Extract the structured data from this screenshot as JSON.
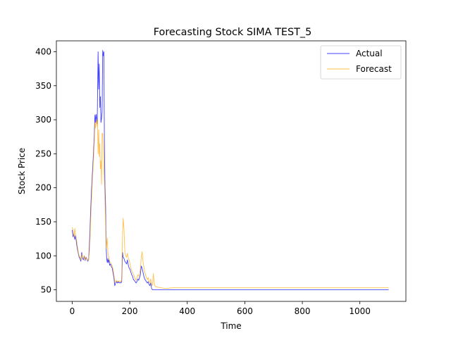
{
  "chart_data": {
    "type": "line",
    "title": "Forecasting Stock SIMA TEST_5",
    "xlabel": "Time",
    "ylabel": "Stock Price",
    "xlim": [
      -55,
      1160
    ],
    "ylim": [
      33,
      416
    ],
    "xticks": [
      0,
      200,
      400,
      600,
      800,
      1000
    ],
    "yticks": [
      50,
      100,
      150,
      200,
      250,
      300,
      350,
      400
    ],
    "grid": false,
    "legend": "top-right",
    "series": [
      {
        "name": "Actual",
        "color": "#0000ff",
        "points": [
          [
            0,
            138
          ],
          [
            3,
            128
          ],
          [
            6,
            132
          ],
          [
            9,
            124
          ],
          [
            12,
            130
          ],
          [
            15,
            118
          ],
          [
            18,
            110
          ],
          [
            21,
            104
          ],
          [
            24,
            98
          ],
          [
            27,
            96
          ],
          [
            30,
            92
          ],
          [
            33,
            105
          ],
          [
            36,
            96
          ],
          [
            39,
            94
          ],
          [
            42,
            100
          ],
          [
            45,
            93
          ],
          [
            48,
            98
          ],
          [
            51,
            95
          ],
          [
            54,
            92
          ],
          [
            57,
            94
          ],
          [
            60,
            118
          ],
          [
            62,
            140
          ],
          [
            64,
            165
          ],
          [
            67,
            195
          ],
          [
            70,
            220
          ],
          [
            72,
            235
          ],
          [
            75,
            260
          ],
          [
            77,
            280
          ],
          [
            79,
            307
          ],
          [
            81,
            296
          ],
          [
            83,
            308
          ],
          [
            85,
            302
          ],
          [
            87,
            294
          ],
          [
            88,
            332
          ],
          [
            90,
            400
          ],
          [
            92,
            345
          ],
          [
            94,
            382
          ],
          [
            96,
            318
          ],
          [
            98,
            334
          ],
          [
            100,
            296
          ],
          [
            102,
            302
          ],
          [
            104,
            312
          ],
          [
            106,
            402
          ],
          [
            108,
            394
          ],
          [
            110,
            400
          ],
          [
            112,
            270
          ],
          [
            114,
            200
          ],
          [
            116,
            175
          ],
          [
            118,
            112
          ],
          [
            120,
            95
          ],
          [
            122,
            90
          ],
          [
            124,
            96
          ],
          [
            126,
            90
          ],
          [
            128,
            94
          ],
          [
            130,
            86
          ],
          [
            133,
            88
          ],
          [
            136,
            84
          ],
          [
            139,
            82
          ],
          [
            142,
            75
          ],
          [
            145,
            68
          ],
          [
            148,
            56
          ],
          [
            151,
            60
          ],
          [
            154,
            62
          ],
          [
            157,
            60
          ],
          [
            160,
            62
          ],
          [
            163,
            60
          ],
          [
            166,
            61
          ],
          [
            169,
            60
          ],
          [
            172,
            62
          ],
          [
            175,
            105
          ],
          [
            177,
            98
          ],
          [
            180,
            96
          ],
          [
            183,
            92
          ],
          [
            186,
            90
          ],
          [
            189,
            88
          ],
          [
            192,
            94
          ],
          [
            195,
            86
          ],
          [
            198,
            82
          ],
          [
            201,
            80
          ],
          [
            204,
            76
          ],
          [
            207,
            72
          ],
          [
            210,
            70
          ],
          [
            213,
            65
          ],
          [
            216,
            64
          ],
          [
            219,
            62
          ],
          [
            222,
            60
          ],
          [
            225,
            62
          ],
          [
            228,
            66
          ],
          [
            231,
            64
          ],
          [
            234,
            68
          ],
          [
            237,
            72
          ],
          [
            240,
            85
          ],
          [
            243,
            82
          ],
          [
            246,
            76
          ],
          [
            249,
            70
          ],
          [
            252,
            66
          ],
          [
            255,
            64
          ],
          [
            258,
            62
          ],
          [
            261,
            60
          ],
          [
            264,
            62
          ],
          [
            267,
            58
          ],
          [
            270,
            56
          ],
          [
            273,
            60
          ],
          [
            276,
            52
          ],
          [
            279,
            50
          ],
          [
            285,
            50
          ],
          [
            300,
            50
          ],
          [
            350,
            50
          ],
          [
            400,
            50
          ],
          [
            600,
            50
          ],
          [
            800,
            50
          ],
          [
            1000,
            50
          ],
          [
            1100,
            50
          ]
        ]
      },
      {
        "name": "Forecast",
        "color": "#ffa500",
        "points": [
          [
            0,
            142
          ],
          [
            3,
            138
          ],
          [
            6,
            128
          ],
          [
            9,
            140
          ],
          [
            12,
            130
          ],
          [
            15,
            124
          ],
          [
            18,
            114
          ],
          [
            21,
            106
          ],
          [
            24,
            100
          ],
          [
            27,
            98
          ],
          [
            30,
            94
          ],
          [
            33,
            102
          ],
          [
            36,
            98
          ],
          [
            39,
            96
          ],
          [
            42,
            100
          ],
          [
            45,
            94
          ],
          [
            48,
            98
          ],
          [
            51,
            96
          ],
          [
            54,
            93
          ],
          [
            57,
            94
          ],
          [
            60,
            108
          ],
          [
            62,
            125
          ],
          [
            64,
            150
          ],
          [
            67,
            180
          ],
          [
            70,
            210
          ],
          [
            72,
            225
          ],
          [
            75,
            250
          ],
          [
            77,
            270
          ],
          [
            79,
            295
          ],
          [
            81,
            288
          ],
          [
            83,
            300
          ],
          [
            85,
            296
          ],
          [
            87,
            290
          ],
          [
            88,
            300
          ],
          [
            90,
            250
          ],
          [
            92,
            285
          ],
          [
            94,
            246
          ],
          [
            96,
            265
          ],
          [
            98,
            228
          ],
          [
            100,
            240
          ],
          [
            102,
            205
          ],
          [
            104,
            280
          ],
          [
            106,
            280
          ],
          [
            108,
            255
          ],
          [
            110,
            228
          ],
          [
            112,
            210
          ],
          [
            114,
            180
          ],
          [
            116,
            150
          ],
          [
            118,
            110
          ],
          [
            120,
            118
          ],
          [
            122,
            126
          ],
          [
            124,
            105
          ],
          [
            126,
            100
          ],
          [
            128,
            96
          ],
          [
            130,
            92
          ],
          [
            133,
            90
          ],
          [
            136,
            88
          ],
          [
            139,
            85
          ],
          [
            142,
            80
          ],
          [
            145,
            72
          ],
          [
            148,
            64
          ],
          [
            151,
            60
          ],
          [
            154,
            64
          ],
          [
            157,
            62
          ],
          [
            160,
            63
          ],
          [
            163,
            62
          ],
          [
            166,
            63
          ],
          [
            169,
            62
          ],
          [
            172,
            64
          ],
          [
            175,
            130
          ],
          [
            177,
            155
          ],
          [
            180,
            140
          ],
          [
            183,
            105
          ],
          [
            186,
            100
          ],
          [
            189,
            98
          ],
          [
            192,
            104
          ],
          [
            195,
            96
          ],
          [
            198,
            94
          ],
          [
            201,
            88
          ],
          [
            204,
            82
          ],
          [
            207,
            78
          ],
          [
            210,
            76
          ],
          [
            213,
            72
          ],
          [
            216,
            70
          ],
          [
            219,
            66
          ],
          [
            222,
            64
          ],
          [
            225,
            68
          ],
          [
            228,
            72
          ],
          [
            231,
            70
          ],
          [
            234,
            74
          ],
          [
            237,
            80
          ],
          [
            240,
            98
          ],
          [
            243,
            106
          ],
          [
            246,
            92
          ],
          [
            249,
            84
          ],
          [
            252,
            76
          ],
          [
            255,
            72
          ],
          [
            258,
            68
          ],
          [
            261,
            65
          ],
          [
            264,
            68
          ],
          [
            267,
            62
          ],
          [
            270,
            60
          ],
          [
            273,
            66
          ],
          [
            276,
            58
          ],
          [
            279,
            56
          ],
          [
            282,
            74
          ],
          [
            285,
            60
          ],
          [
            288,
            55
          ],
          [
            295,
            54
          ],
          [
            310,
            53
          ],
          [
            320,
            52
          ],
          [
            350,
            53
          ],
          [
            400,
            53
          ],
          [
            600,
            53
          ],
          [
            800,
            53
          ],
          [
            1000,
            53
          ],
          [
            1100,
            53
          ]
        ]
      }
    ]
  }
}
